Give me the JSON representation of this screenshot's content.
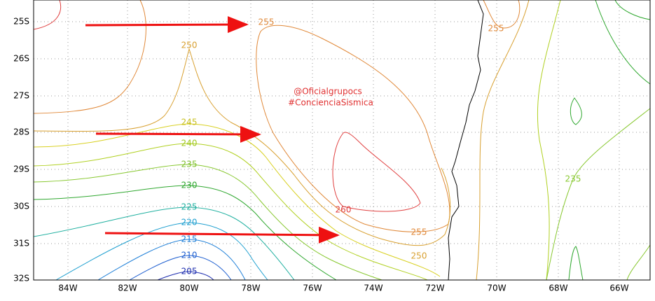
{
  "latitude_labels": [
    "25S",
    "26S",
    "27S",
    "28S",
    "29S",
    "30S",
    "31S",
    "32S"
  ],
  "longitude_labels": [
    "84W",
    "82W",
    "80W",
    "78W",
    "76W",
    "74W",
    "72W",
    "70W",
    "68W",
    "66W"
  ],
  "contour_labels": [
    "255",
    "250",
    "245",
    "240",
    "235",
    "230",
    "225",
    "220",
    "215",
    "210",
    "205",
    "260",
    "255",
    "250",
    "255",
    "235"
  ],
  "watermark": [
    "@Oficialgrupocs",
    "#ConcienciaSismica"
  ]
}
